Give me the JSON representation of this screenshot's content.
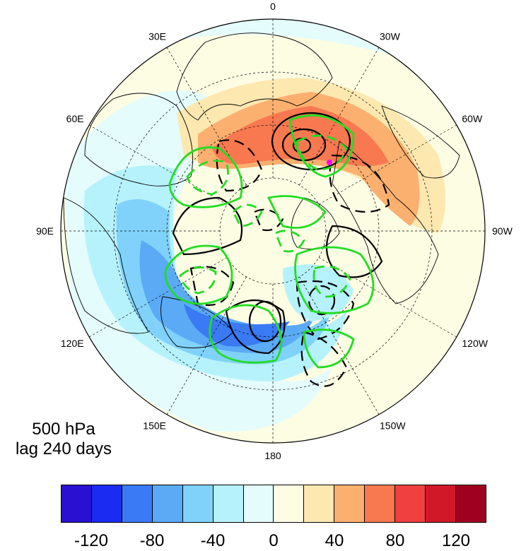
{
  "caption": {
    "level": "500 hPa",
    "lag": "lag 240 days"
  },
  "lon_labels": [
    {
      "text": "0",
      "lon": 0
    },
    {
      "text": "30W",
      "lon": -30
    },
    {
      "text": "60W",
      "lon": -60
    },
    {
      "text": "90W",
      "lon": -90
    },
    {
      "text": "120W",
      "lon": -120
    },
    {
      "text": "150W",
      "lon": -150
    },
    {
      "text": "180",
      "lon": 180
    },
    {
      "text": "150E",
      "lon": 150
    },
    {
      "text": "120E",
      "lon": 120
    },
    {
      "text": "90E",
      "lon": 90
    },
    {
      "text": "60E",
      "lon": 60
    },
    {
      "text": "30E",
      "lon": 30
    }
  ],
  "colorbar": {
    "colors": [
      "#2a10d0",
      "#1a2cf0",
      "#3a7af5",
      "#5aaaf5",
      "#80d2fa",
      "#b6f2fc",
      "#e4fcfc",
      "#fdfde4",
      "#fde8b0",
      "#fbb070",
      "#f87850",
      "#f04040",
      "#d01828",
      "#a00020"
    ],
    "ticks": [
      "-120",
      "-80",
      "-40",
      "0",
      "40",
      "80",
      "120"
    ]
  },
  "marker": {
    "color": "#ff00ff"
  },
  "contour_colors": {
    "positive": "#000000",
    "green": "#22dd22"
  }
}
